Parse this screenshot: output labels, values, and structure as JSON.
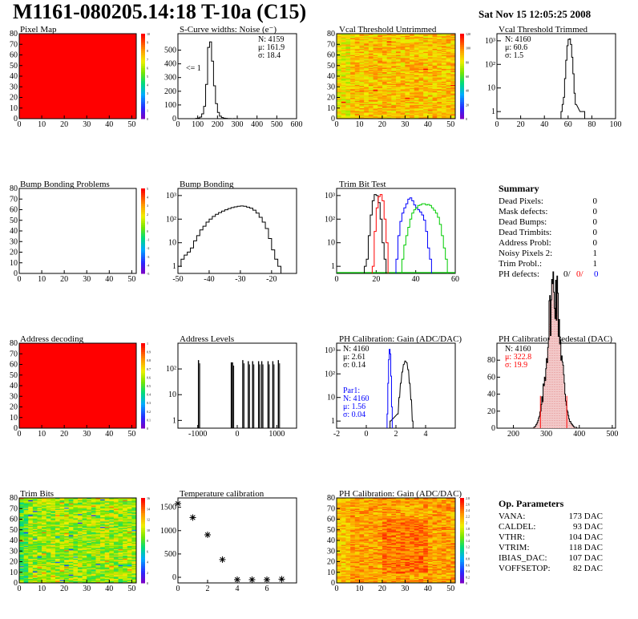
{
  "header": {
    "title": "M1161-080205.14:18 T-10a (C15)",
    "date": "Sat Nov 15 12:05:25 2008"
  },
  "chart_data": [
    {
      "id": "pixel_map",
      "type": "heatmap",
      "title": "Pixel Map",
      "xlim": [
        0,
        52
      ],
      "ylim": [
        0,
        80
      ],
      "xticks": [
        "0",
        "10",
        "20",
        "30",
        "40",
        "50"
      ],
      "yticks": [
        "0",
        "10",
        "20",
        "30",
        "40",
        "50",
        "60",
        "70",
        "80"
      ],
      "values": "uniform",
      "value": 10,
      "colorbar": {
        "min": 0,
        "max": 10,
        "labels": [
          "0",
          "1",
          "2",
          "3",
          "4",
          "5",
          "6",
          "7",
          "8",
          "9",
          "10"
        ]
      }
    },
    {
      "id": "scurve_noise",
      "type": "histogram",
      "title": "S-Curve widths: Noise (e⁻)",
      "xlim": [
        0,
        600
      ],
      "ylim": [
        0,
        620
      ],
      "xticks": [
        "0",
        "100",
        "200",
        "300",
        "400",
        "500",
        "600"
      ],
      "yticks": [
        "0",
        "100",
        "200",
        "300",
        "400",
        "500"
      ],
      "stats": [
        "N: 4159",
        "μ: 161.9",
        "σ: 18.4"
      ],
      "annotation": "<= 1",
      "bin_width": 10,
      "bins": [
        [
          90,
          2
        ],
        [
          100,
          5
        ],
        [
          110,
          12
        ],
        [
          120,
          35
        ],
        [
          130,
          90
        ],
        [
          140,
          250
        ],
        [
          150,
          520
        ],
        [
          160,
          560
        ],
        [
          170,
          420
        ],
        [
          180,
          240
        ],
        [
          190,
          110
        ],
        [
          200,
          45
        ],
        [
          210,
          18
        ],
        [
          220,
          8
        ],
        [
          230,
          4
        ],
        [
          240,
          2
        ],
        [
          250,
          1
        ],
        [
          260,
          1
        ],
        [
          270,
          0
        ],
        [
          280,
          1
        ]
      ]
    },
    {
      "id": "vcal_untrimmed",
      "type": "heatmap",
      "title": "Vcal Threshold Untrimmed",
      "xlim": [
        0,
        52
      ],
      "ylim": [
        0,
        80
      ],
      "xticks": [
        "0",
        "10",
        "20",
        "30",
        "40",
        "50"
      ],
      "yticks": [
        "0",
        "10",
        "20",
        "30",
        "40",
        "50",
        "60",
        "70",
        "80"
      ],
      "colorbar": {
        "min": 0,
        "max": 130,
        "labels": [
          "0",
          "20",
          "40",
          "60",
          "80",
          "100",
          "120"
        ]
      }
    },
    {
      "id": "vcal_trimmed",
      "type": "histogram",
      "title": "Vcal Threshold Trimmed",
      "log_y": true,
      "xlim": [
        0,
        100
      ],
      "ylim": [
        0.5,
        2000
      ],
      "xticks": [
        "0",
        "20",
        "40",
        "60",
        "80",
        "100"
      ],
      "yticks": [
        "1",
        "10",
        "10²",
        "10³"
      ],
      "stats": [
        "N: 4160",
        "μ: 60.6",
        "σ: 1.5"
      ],
      "bin_width": 1,
      "bins": [
        [
          54,
          1
        ],
        [
          55,
          2
        ],
        [
          56,
          4
        ],
        [
          57,
          25
        ],
        [
          58,
          150
        ],
        [
          59,
          620
        ],
        [
          60,
          1150
        ],
        [
          61,
          1200
        ],
        [
          62,
          700
        ],
        [
          63,
          200
        ],
        [
          64,
          40
        ],
        [
          65,
          6
        ],
        [
          66,
          2
        ],
        [
          70,
          1
        ],
        [
          71,
          1
        ],
        [
          72,
          1
        ],
        [
          73,
          1
        ]
      ]
    },
    {
      "id": "bump_problems",
      "type": "heatmap",
      "title": "Bump Bonding Problems",
      "xlim": [
        0,
        52
      ],
      "ylim": [
        0,
        80
      ],
      "xticks": [
        "0",
        "10",
        "20",
        "30",
        "40",
        "50"
      ],
      "yticks": [
        "0",
        "10",
        "20",
        "30",
        "40",
        "50",
        "60",
        "70",
        "80"
      ],
      "values": "empty",
      "colorbar": {
        "min": -5,
        "max": 5,
        "labels": [
          "-5",
          "-4",
          "-3",
          "-2",
          "-1",
          "0",
          "1",
          "2",
          "3",
          "4",
          "5"
        ]
      }
    },
    {
      "id": "bump_bonding",
      "type": "histogram",
      "title": "Bump Bonding",
      "log_y": true,
      "xlim": [
        -50,
        -12
      ],
      "ylim": [
        0.5,
        2000
      ],
      "xticks": [
        "-50",
        "-40",
        "-30",
        "-20"
      ],
      "yticks": [
        "1",
        "10",
        "10²",
        "10³"
      ],
      "bin_width": 1,
      "bins": [
        [
          -50,
          1
        ],
        [
          -49,
          2
        ],
        [
          -48,
          3
        ],
        [
          -47,
          4
        ],
        [
          -46,
          6
        ],
        [
          -45,
          12
        ],
        [
          -44,
          20
        ],
        [
          -43,
          35
        ],
        [
          -42,
          50
        ],
        [
          -41,
          75
        ],
        [
          -40,
          100
        ],
        [
          -39,
          130
        ],
        [
          -38,
          160
        ],
        [
          -37,
          190
        ],
        [
          -36,
          220
        ],
        [
          -35,
          250
        ],
        [
          -34,
          280
        ],
        [
          -33,
          310
        ],
        [
          -32,
          330
        ],
        [
          -31,
          350
        ],
        [
          -30,
          360
        ],
        [
          -29,
          350
        ],
        [
          -28,
          320
        ],
        [
          -27,
          290
        ],
        [
          -26,
          240
        ],
        [
          -25,
          180
        ],
        [
          -24,
          120
        ],
        [
          -23,
          75
        ],
        [
          -22,
          40
        ],
        [
          -21,
          15
        ],
        [
          -20,
          5
        ],
        [
          -19,
          2
        ],
        [
          -18,
          1
        ]
      ]
    },
    {
      "id": "trim_bit_test",
      "type": "histogram",
      "title": "Trim Bit Test",
      "log_y": true,
      "xlim": [
        0,
        60
      ],
      "ylim": [
        0.5,
        2000
      ],
      "xticks": [
        "0",
        "20",
        "40",
        "60"
      ],
      "yticks": [
        "1",
        "10",
        "10²",
        "10³"
      ],
      "series": [
        {
          "color": "#000000",
          "bins": [
            [
              14,
              1
            ],
            [
              15,
              2
            ],
            [
              16,
              20
            ],
            [
              17,
              150
            ],
            [
              18,
              600
            ],
            [
              19,
              1100
            ],
            [
              20,
              1000
            ],
            [
              21,
              500
            ],
            [
              22,
              100
            ],
            [
              23,
              10
            ],
            [
              24,
              2
            ]
          ]
        },
        {
          "color": "#ff0000",
          "bins": [
            [
              18,
              1
            ],
            [
              19,
              30
            ],
            [
              20,
              300
            ],
            [
              21,
              900
            ],
            [
              22,
              1100
            ],
            [
              23,
              600
            ],
            [
              24,
              100
            ],
            [
              25,
              10
            ]
          ]
        },
        {
          "color": "#0000ff",
          "bins": [
            [
              30,
              2
            ],
            [
              31,
              20
            ],
            [
              32,
              80
            ],
            [
              33,
              180
            ],
            [
              34,
              300
            ],
            [
              35,
              450
            ],
            [
              36,
              700
            ],
            [
              37,
              800
            ],
            [
              38,
              600
            ],
            [
              39,
              400
            ],
            [
              40,
              300
            ],
            [
              41,
              250
            ],
            [
              42,
              200
            ],
            [
              43,
              150
            ],
            [
              44,
              90
            ],
            [
              45,
              30
            ],
            [
              46,
              6
            ],
            [
              47,
              2
            ]
          ]
        },
        {
          "color": "#00cc00",
          "bins": [
            [
              33,
              2
            ],
            [
              34,
              8
            ],
            [
              35,
              20
            ],
            [
              36,
              45
            ],
            [
              37,
              100
            ],
            [
              38,
              180
            ],
            [
              39,
              250
            ],
            [
              40,
              300
            ],
            [
              41,
              380
            ],
            [
              42,
              400
            ],
            [
              43,
              450
            ],
            [
              44,
              450
            ],
            [
              45,
              400
            ],
            [
              46,
              420
            ],
            [
              47,
              380
            ],
            [
              48,
              300
            ],
            [
              49,
              240
            ],
            [
              50,
              180
            ],
            [
              51,
              120
            ],
            [
              52,
              60
            ],
            [
              53,
              20
            ],
            [
              54,
              6
            ],
            [
              55,
              2
            ]
          ]
        }
      ]
    },
    {
      "id": "summary",
      "type": "table",
      "title": "Summary",
      "rows": [
        [
          "Dead Pixels:",
          "0"
        ],
        [
          "Mask defects:",
          "0"
        ],
        [
          "Dead Bumps:",
          "0"
        ],
        [
          "Dead Trimbits:",
          "0"
        ],
        [
          "Address Probl:",
          "0"
        ],
        [
          "Noisy Pixels 2:",
          "1"
        ],
        [
          "Trim Probl.:",
          "1"
        ]
      ],
      "ph_defects": {
        "label": "PH defects:",
        "values": [
          "0/",
          "0/",
          "0"
        ],
        "colors": [
          "#000000",
          "#ff0000",
          "#0000ff"
        ]
      }
    },
    {
      "id": "address_decoding",
      "type": "heatmap",
      "title": "Address decoding",
      "xlim": [
        0,
        52
      ],
      "ylim": [
        0,
        80
      ],
      "xticks": [
        "0",
        "10",
        "20",
        "30",
        "40",
        "50"
      ],
      "yticks": [
        "0",
        "10",
        "20",
        "30",
        "40",
        "50",
        "60",
        "70",
        "80"
      ],
      "values": "uniform",
      "value": 1,
      "colorbar": {
        "min": 0,
        "max": 1,
        "labels": [
          "0",
          "0.1",
          "0.2",
          "0.3",
          "0.4",
          "0.5",
          "0.6",
          "0.7",
          "0.8",
          "0.9",
          "1"
        ]
      }
    },
    {
      "id": "address_levels",
      "type": "histogram",
      "title": "Address Levels",
      "log_y": true,
      "xlim": [
        -1500,
        1500
      ],
      "ylim": [
        0.5,
        1000
      ],
      "xticks": [
        "-1000",
        "0",
        "1000"
      ],
      "yticks": [
        "1",
        "10",
        "10²"
      ],
      "peaks": [
        [
          -980,
          220
        ],
        [
          -150,
          180
        ],
        [
          -120,
          180
        ],
        [
          140,
          220
        ],
        [
          280,
          200
        ],
        [
          390,
          200
        ],
        [
          540,
          200
        ],
        [
          620,
          200
        ],
        [
          780,
          200
        ],
        [
          900,
          200
        ],
        [
          1040,
          220
        ]
      ]
    },
    {
      "id": "ph_gain",
      "type": "histogram",
      "title": "PH Calibration: Gain (ADC/DAC)",
      "log_y": true,
      "xlim": [
        -2,
        6
      ],
      "ylim": [
        0.5,
        2000
      ],
      "xticks": [
        "-2",
        "0",
        "2",
        "4"
      ],
      "yticks": [
        "1",
        "10",
        "10²",
        "10³"
      ],
      "stats": [
        "N: 4160",
        "μ: 2.61",
        "σ: 0.14"
      ],
      "par1_stats": [
        "Par1:",
        "N: 4160",
        "μ: 1.56",
        "σ: 0.04"
      ],
      "series": [
        {
          "color": "#000000",
          "bins": [
            [
              1.6,
              1
            ],
            [
              2.1,
              2
            ],
            [
              2.2,
              10
            ],
            [
              2.3,
              40
            ],
            [
              2.4,
              120
            ],
            [
              2.5,
              250
            ],
            [
              2.6,
              350
            ],
            [
              2.7,
              300
            ],
            [
              2.8,
              150
            ],
            [
              2.9,
              40
            ],
            [
              3.0,
              8
            ],
            [
              3.1,
              1
            ]
          ]
        },
        {
          "color": "#0000ff",
          "bins": [
            [
              1.4,
              2
            ],
            [
              1.45,
              40
            ],
            [
              1.5,
              400
            ],
            [
              1.55,
              1100
            ],
            [
              1.6,
              700
            ],
            [
              1.65,
              80
            ],
            [
              1.7,
              4
            ]
          ]
        }
      ]
    },
    {
      "id": "ph_pedestal",
      "type": "histogram",
      "title": "PH Calibration: Pedestal (DAC)",
      "xlim": [
        150,
        510
      ],
      "ylim": [
        0,
        100
      ],
      "xticks": [
        "200",
        "300",
        "400",
        "500"
      ],
      "yticks": [
        "0",
        "20",
        "40",
        "60",
        "80"
      ],
      "stats": [
        "N: 4160",
        "μ: 322.8",
        "σ: 19.9"
      ],
      "cut_lines": [
        282,
        362
      ]
    },
    {
      "id": "trim_bits",
      "type": "heatmap",
      "title": "Trim Bits",
      "xlim": [
        0,
        52
      ],
      "ylim": [
        0,
        80
      ],
      "xticks": [
        "0",
        "10",
        "20",
        "30",
        "40",
        "50"
      ],
      "yticks": [
        "0",
        "10",
        "20",
        "30",
        "40",
        "50",
        "60",
        "70",
        "80"
      ],
      "colorbar": {
        "min": 0,
        "max": 16,
        "labels": [
          "0",
          "2",
          "4",
          "6",
          "8",
          "10",
          "12",
          "14",
          "16"
        ]
      }
    },
    {
      "id": "temperature_calibration",
      "type": "scatter",
      "title": "Temperature calibration",
      "xlim": [
        0,
        8
      ],
      "ylim": [
        -120,
        1700
      ],
      "xticks": [
        "0",
        "2",
        "4",
        "6"
      ],
      "yticks": [
        "0",
        "500",
        "1000",
        "1500"
      ],
      "x": [
        0,
        1,
        2,
        3,
        4,
        5,
        6,
        7
      ],
      "y": [
        1580,
        1280,
        910,
        380,
        -50,
        -50,
        -50,
        -40
      ]
    },
    {
      "id": "ph_gain_map",
      "type": "heatmap",
      "title": "PH Calibration: Gain (ADC/DAC)",
      "xlim": [
        0,
        52
      ],
      "ylim": [
        0,
        80
      ],
      "xticks": [
        "0",
        "10",
        "20",
        "30",
        "40",
        "50"
      ],
      "yticks": [
        "0",
        "10",
        "20",
        "30",
        "40",
        "50",
        "60",
        "70",
        "80"
      ],
      "colorbar": {
        "min": 0,
        "max": 3,
        "labels": [
          "0",
          "0.2",
          "0.4",
          "0.6",
          "0.8",
          "1",
          "1.2",
          "1.4",
          "1.6",
          "1.8",
          "2",
          "2.2",
          "2.4",
          "2.6",
          "2.8"
        ]
      }
    },
    {
      "id": "op_parameters",
      "type": "table",
      "title": "Op. Parameters",
      "rows": [
        [
          "VANA:",
          "173 DAC"
        ],
        [
          "CALDEL:",
          "93 DAC"
        ],
        [
          "VTHR:",
          "104 DAC"
        ],
        [
          "VTRIM:",
          "118 DAC"
        ],
        [
          "IBIAS_DAC:",
          "107 DAC"
        ],
        [
          "VOFFSETOP:",
          "82 DAC"
        ]
      ]
    }
  ]
}
